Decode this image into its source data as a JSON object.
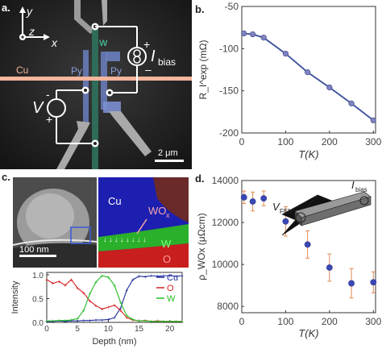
{
  "panel_a": {
    "label": "a.",
    "axis_y": "y",
    "axis_z": "z",
    "axis_x": "x",
    "cu_label": "Cu",
    "py_left": "Py",
    "py_right": "Py",
    "w_label": "W",
    "current_symbol": "I",
    "current_sub": "bias",
    "plus_top": "+",
    "minus_bottom": "–",
    "voltage_symbol": "V",
    "v_minus": "-",
    "v_plus": "+",
    "scale_bar": "2 μm"
  },
  "panel_b": {
    "label": "b."
  },
  "panel_c": {
    "label": "c.",
    "scale_bar": "100 nm",
    "cu_label": "Cu",
    "wox_label": "WO",
    "wox_sub": "x",
    "w_label": "W",
    "o_label": "O",
    "ylabel": "Intensity",
    "xlabel": "Depth (nm)"
  },
  "panel_d": {
    "label": "d.",
    "vfem_label": "V",
    "vfem_sub": "FEM",
    "ibias_label": "I",
    "ibias_sub": "bias"
  },
  "chart_data": [
    {
      "id": "b",
      "type": "line",
      "x": [
        5,
        25,
        50,
        100,
        150,
        200,
        250,
        300
      ],
      "y": [
        -82,
        -83,
        -87,
        -106,
        -128,
        -146,
        -165,
        -185
      ],
      "xlabel": "T(K)",
      "ylabel": "R_I^exp (mΩ)",
      "xlim": [
        0,
        305
      ],
      "ylim": [
        -200,
        -50
      ],
      "xticks": [
        0,
        100,
        200,
        300
      ],
      "yticks": [
        -50,
        -100,
        -150,
        -200
      ],
      "line_color": "#3a4e9a",
      "marker_color": "#7f84c0"
    },
    {
      "id": "c",
      "type": "line",
      "xlabel": "Depth (nm)",
      "ylabel": "Intensity",
      "xlim": [
        0,
        22
      ],
      "ylim": [
        0,
        1.05
      ],
      "xticks": [
        0,
        5,
        10,
        15,
        20
      ],
      "yticks": [
        0.0,
        0.5,
        1.0
      ],
      "x": [
        0,
        1,
        2,
        3,
        4,
        5,
        6,
        7,
        8,
        9,
        10,
        11,
        12,
        13,
        14,
        15,
        16,
        17,
        18,
        19,
        20,
        21,
        22
      ],
      "series": [
        {
          "name": "Cu",
          "color": "#1c2a9c",
          "values": [
            0.02,
            0.02,
            0.03,
            0.02,
            0.03,
            0.03,
            0.04,
            0.04,
            0.05,
            0.05,
            0.06,
            0.1,
            0.3,
            0.68,
            0.9,
            0.97,
            0.96,
            0.98,
            0.97,
            0.98,
            0.98,
            0.97,
            0.98
          ]
        },
        {
          "name": "O",
          "color": "#d61f1f",
          "values": [
            0.9,
            0.82,
            0.86,
            0.78,
            0.9,
            0.72,
            0.62,
            0.45,
            0.35,
            0.28,
            0.32,
            0.36,
            0.25,
            0.1,
            0.05,
            0.03,
            0.04,
            0.02,
            0.03,
            0.02,
            0.02,
            0.02,
            0.02
          ]
        },
        {
          "name": "W",
          "color": "#22bb22",
          "values": [
            0.03,
            0.03,
            0.04,
            0.04,
            0.05,
            0.08,
            0.25,
            0.6,
            0.85,
            0.98,
            0.95,
            0.78,
            0.42,
            0.14,
            0.06,
            0.03,
            0.03,
            0.02,
            0.02,
            0.02,
            0.02,
            0.02,
            0.02
          ]
        }
      ]
    },
    {
      "id": "d",
      "type": "scatter",
      "x": [
        5,
        25,
        50,
        100,
        150,
        200,
        250,
        300
      ],
      "y": [
        13200,
        13000,
        13150,
        12050,
        10950,
        9850,
        9100,
        9150
      ],
      "yerr": [
        300,
        450,
        350,
        700,
        650,
        650,
        700,
        500
      ],
      "xlabel": "T(K)",
      "ylabel": "ρ_WOx (μΩcm)",
      "xlim": [
        0,
        305
      ],
      "ylim": [
        7700,
        14000
      ],
      "xticks": [
        0,
        100,
        200,
        300
      ],
      "yticks": [
        8000,
        10000,
        12000,
        14000
      ],
      "marker_color": "#3a48b4",
      "error_color": "#e08a50"
    }
  ]
}
